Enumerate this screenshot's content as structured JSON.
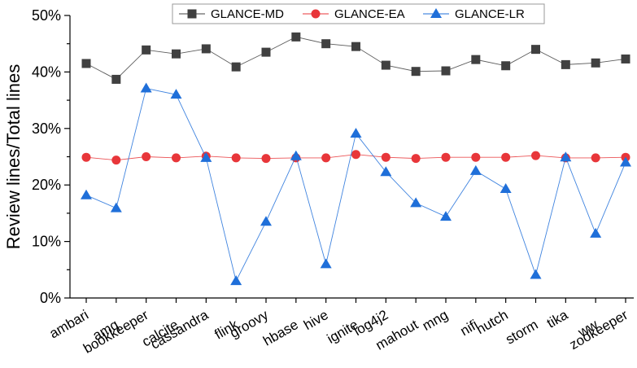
{
  "chart_data": {
    "type": "line",
    "ylabel": "Review lines/Total lines",
    "xlabel": "",
    "ylim": [
      0,
      50
    ],
    "yticks": [
      "0%",
      "10%",
      "20%",
      "30%",
      "40%",
      "50%"
    ],
    "grid": false,
    "legend_position": "top",
    "categories": [
      "ambari",
      "amq",
      "bookkeeper",
      "calcite",
      "cassandra",
      "flink",
      "groovy",
      "hbase",
      "hive",
      "ignite",
      "log4j2",
      "mahout",
      "mng",
      "nifi",
      "nutch",
      "storm",
      "tika",
      "ww",
      "zookeeper"
    ],
    "series": [
      {
        "name": "GLANCE-MD",
        "color": "#404040",
        "marker": "square",
        "values": [
          41.5,
          38.7,
          43.9,
          43.2,
          44.1,
          40.9,
          43.5,
          46.2,
          45.0,
          44.5,
          41.2,
          40.1,
          40.2,
          42.2,
          41.1,
          44.0,
          41.3,
          41.6,
          42.3
        ]
      },
      {
        "name": "GLANCE-EA",
        "color": "#e8363a",
        "marker": "circle",
        "values": [
          24.9,
          24.4,
          25.0,
          24.8,
          25.1,
          24.8,
          24.7,
          24.8,
          24.8,
          25.4,
          24.9,
          24.7,
          24.9,
          24.9,
          24.9,
          25.2,
          24.8,
          24.8,
          24.9
        ]
      },
      {
        "name": "GLANCE-LR",
        "color": "#1f6fd9",
        "marker": "triangle",
        "values": [
          18.2,
          15.9,
          37.1,
          36.0,
          24.8,
          3.0,
          13.5,
          25.1,
          6.0,
          29.1,
          22.3,
          16.8,
          14.4,
          22.5,
          19.3,
          4.1,
          24.9,
          11.4,
          24.0
        ]
      }
    ]
  }
}
